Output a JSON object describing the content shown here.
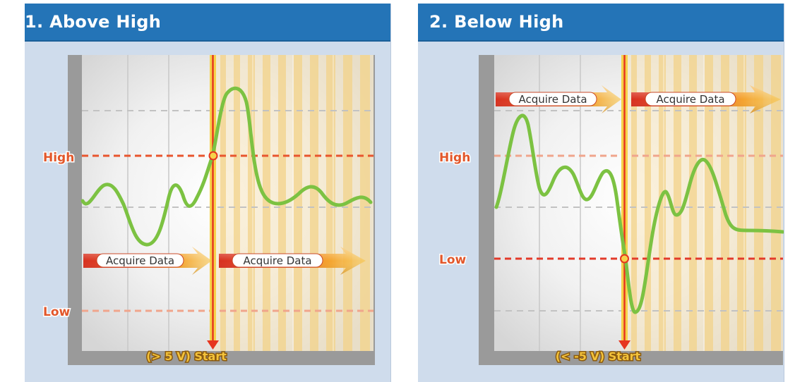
{
  "panels": [
    {
      "title": "1. Above High",
      "high_label": "High",
      "low_label": "Low",
      "acquire_label": "Acquire Data",
      "start_label": "(> 5 V) Start"
    },
    {
      "title": "2. Below High",
      "high_label": "High",
      "low_label": "Low",
      "acquire_label": "Acquire Data",
      "start_label": "(< -5 V) Start"
    }
  ],
  "colors": {
    "header": "#2474b7",
    "panel_bg": "#cfdcec",
    "signal": "#7cc242",
    "trigger_line": "#e63b1f",
    "threshold_line": "#e8552e",
    "label_text": "#d9431c",
    "start_text": "#f3c23a"
  }
}
